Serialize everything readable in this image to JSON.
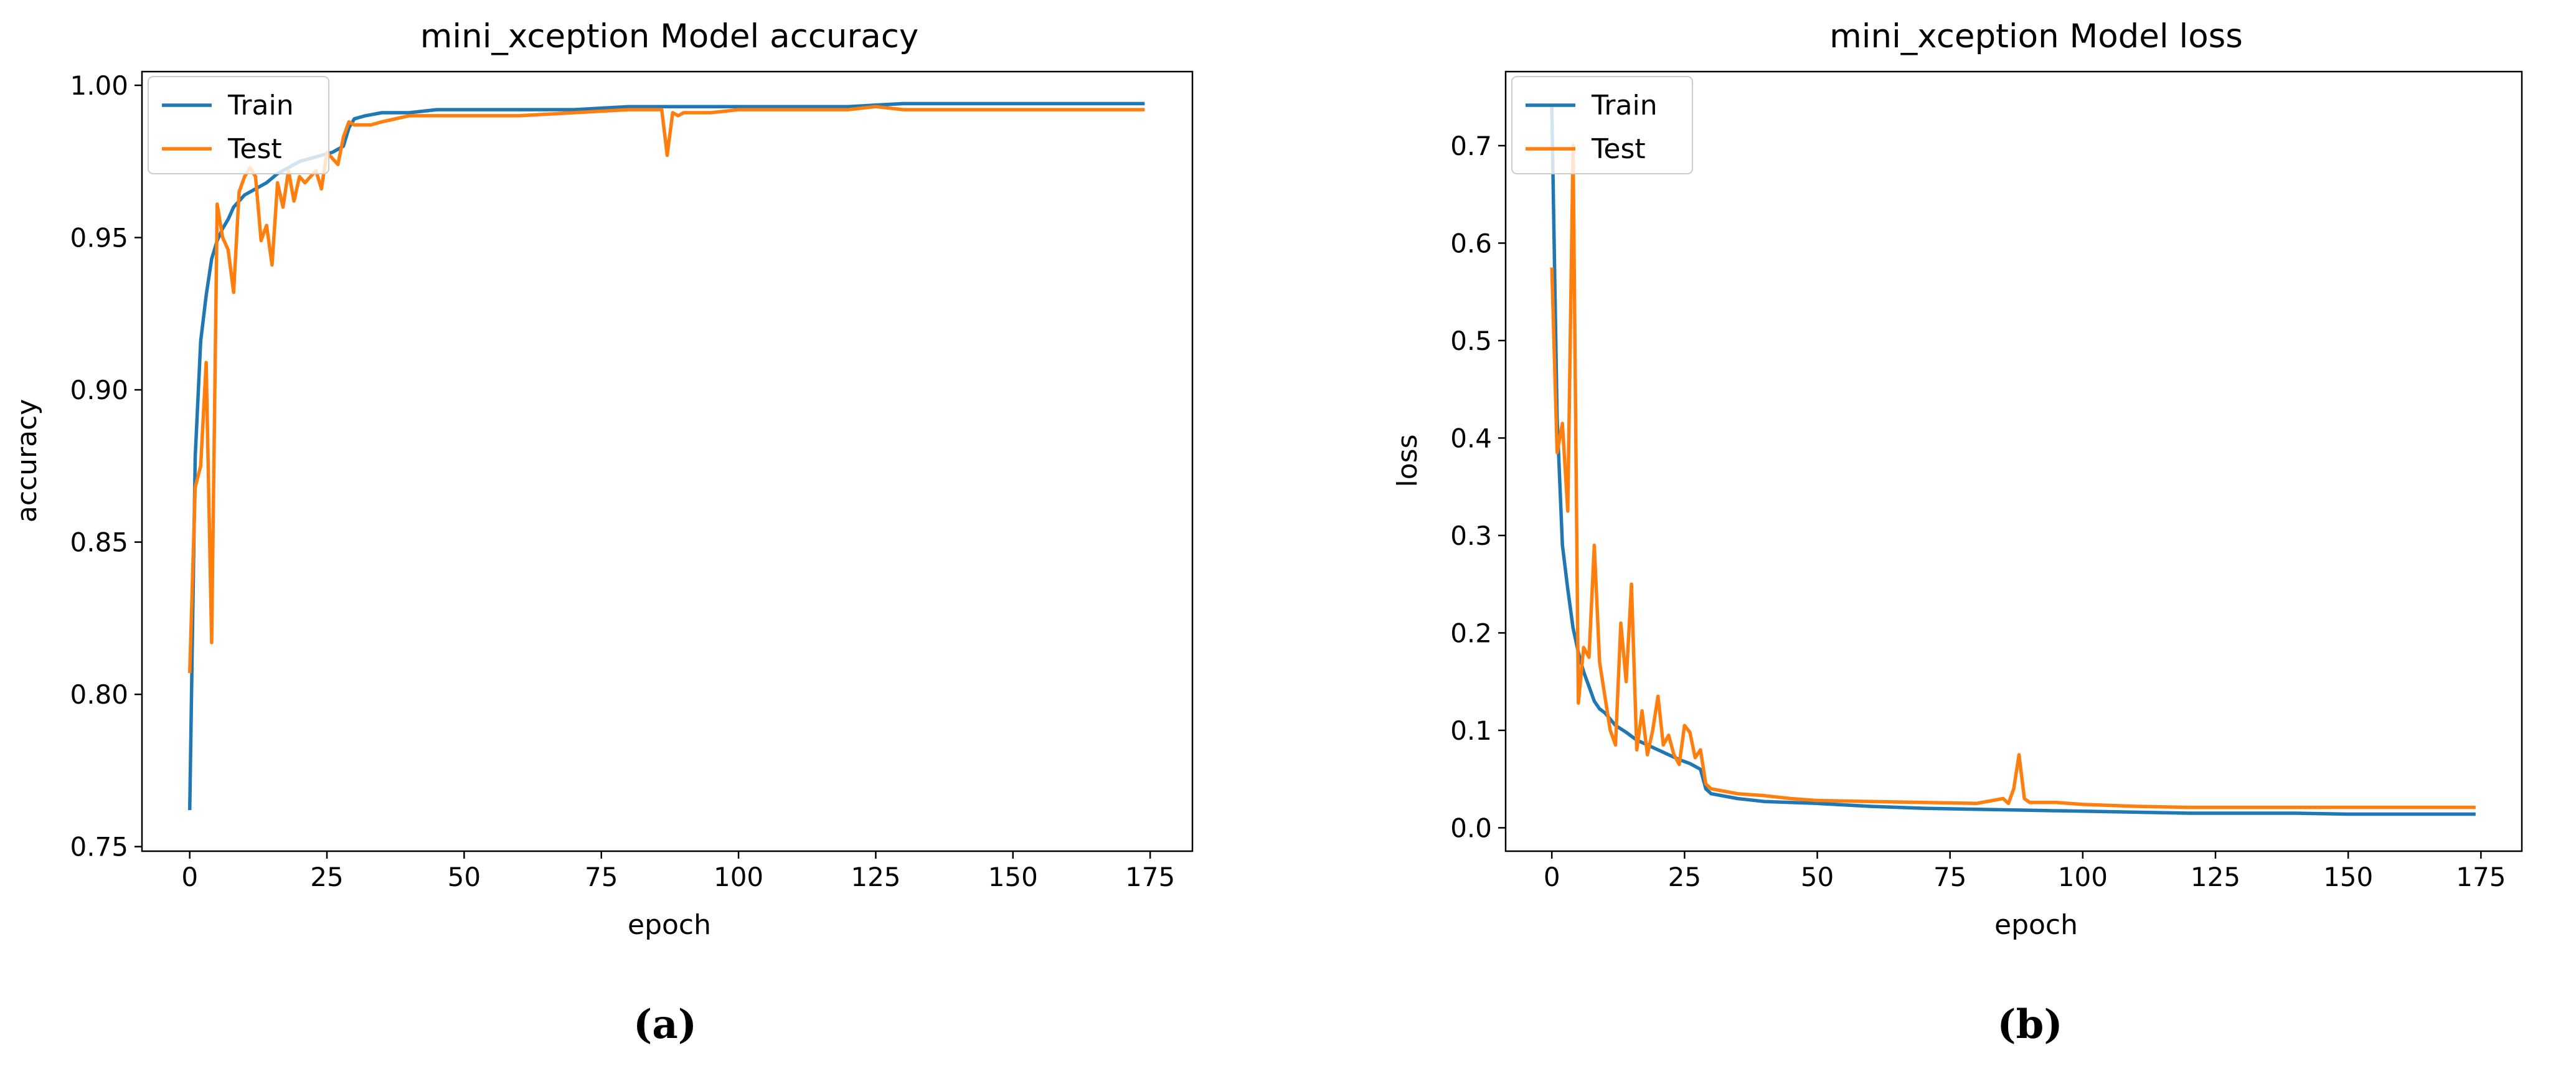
{
  "figure": {
    "panel_labels": [
      "(a)",
      "(b)"
    ]
  },
  "chart_data": [
    {
      "type": "line",
      "title": "mini_xception Model accuracy",
      "xlabel": "epoch",
      "ylabel": "accuracy",
      "xlim": [
        -8.7,
        182.7
      ],
      "ylim": [
        0.7485,
        1.0045
      ],
      "xticks": [
        0,
        25,
        50,
        75,
        100,
        125,
        150,
        175
      ],
      "yticks": [
        0.75,
        0.8,
        0.85,
        0.9,
        0.95,
        1.0
      ],
      "ytick_labels": [
        "0.75",
        "0.80",
        "0.85",
        "0.90",
        "0.95",
        "1.00"
      ],
      "grid": false,
      "legend": "upper-left",
      "series": [
        {
          "name": "Train",
          "color": "#1f77b4",
          "x": [
            0,
            1,
            2,
            3,
            4,
            5,
            6,
            7,
            8,
            9,
            10,
            12,
            14,
            16,
            18,
            20,
            22,
            24,
            26,
            27,
            28,
            29,
            30,
            32,
            35,
            40,
            45,
            50,
            55,
            60,
            70,
            80,
            90,
            100,
            110,
            120,
            130,
            140,
            150,
            160,
            170,
            174
          ],
          "y": [
            0.762,
            0.878,
            0.916,
            0.931,
            0.943,
            0.949,
            0.953,
            0.956,
            0.96,
            0.962,
            0.964,
            0.966,
            0.968,
            0.971,
            0.973,
            0.975,
            0.976,
            0.977,
            0.978,
            0.979,
            0.98,
            0.986,
            0.989,
            0.99,
            0.991,
            0.991,
            0.992,
            0.992,
            0.992,
            0.992,
            0.992,
            0.993,
            0.993,
            0.993,
            0.993,
            0.993,
            0.994,
            0.994,
            0.994,
            0.994,
            0.994,
            0.994
          ]
        },
        {
          "name": "Test",
          "color": "#ff7f0e",
          "x": [
            0,
            1,
            2,
            3,
            4,
            5,
            6,
            7,
            8,
            9,
            10,
            11,
            12,
            13,
            14,
            15,
            16,
            17,
            18,
            19,
            20,
            21,
            22,
            23,
            24,
            25,
            26,
            27,
            28,
            29,
            30,
            33,
            35,
            40,
            45,
            50,
            55,
            60,
            70,
            80,
            86,
            87,
            88,
            89,
            90,
            95,
            100,
            110,
            120,
            125,
            130,
            140,
            150,
            160,
            170,
            174
          ],
          "y": [
            0.807,
            0.868,
            0.875,
            0.909,
            0.817,
            0.961,
            0.95,
            0.946,
            0.932,
            0.965,
            0.97,
            0.973,
            0.97,
            0.949,
            0.954,
            0.941,
            0.968,
            0.96,
            0.972,
            0.962,
            0.97,
            0.968,
            0.97,
            0.972,
            0.966,
            0.978,
            0.976,
            0.974,
            0.983,
            0.988,
            0.987,
            0.987,
            0.988,
            0.99,
            0.99,
            0.99,
            0.99,
            0.99,
            0.991,
            0.992,
            0.992,
            0.977,
            0.991,
            0.99,
            0.991,
            0.991,
            0.992,
            0.992,
            0.992,
            0.993,
            0.992,
            0.992,
            0.992,
            0.992,
            0.992,
            0.992
          ]
        }
      ]
    },
    {
      "type": "line",
      "title": "mini_xception Model loss",
      "xlabel": "epoch",
      "ylabel": "loss",
      "xlim": [
        -8.7,
        182.7
      ],
      "ylim": [
        -0.024,
        0.776
      ],
      "xticks": [
        0,
        25,
        50,
        75,
        100,
        125,
        150,
        175
      ],
      "yticks": [
        0.0,
        0.1,
        0.2,
        0.3,
        0.4,
        0.5,
        0.6,
        0.7
      ],
      "ytick_labels": [
        "0.0",
        "0.1",
        "0.2",
        "0.3",
        "0.4",
        "0.5",
        "0.6",
        "0.7"
      ],
      "grid": false,
      "legend": "upper-left",
      "series": [
        {
          "name": "Train",
          "color": "#1f77b4",
          "x": [
            0,
            1,
            2,
            3,
            4,
            5,
            6,
            7,
            8,
            9,
            10,
            12,
            14,
            16,
            18,
            20,
            22,
            24,
            26,
            28,
            29,
            30,
            35,
            40,
            50,
            60,
            70,
            80,
            90,
            100,
            110,
            120,
            130,
            140,
            150,
            160,
            170,
            174
          ],
          "y": [
            0.74,
            0.42,
            0.29,
            0.245,
            0.205,
            0.18,
            0.16,
            0.145,
            0.13,
            0.122,
            0.118,
            0.105,
            0.098,
            0.09,
            0.085,
            0.08,
            0.075,
            0.07,
            0.066,
            0.06,
            0.04,
            0.035,
            0.03,
            0.027,
            0.025,
            0.022,
            0.02,
            0.019,
            0.018,
            0.017,
            0.016,
            0.015,
            0.015,
            0.015,
            0.014,
            0.014,
            0.014,
            0.014
          ]
        },
        {
          "name": "Test",
          "color": "#ff7f0e",
          "x": [
            0,
            1,
            2,
            3,
            4,
            5,
            6,
            7,
            8,
            9,
            10,
            11,
            12,
            13,
            14,
            15,
            16,
            17,
            18,
            19,
            20,
            21,
            22,
            23,
            24,
            25,
            26,
            27,
            28,
            29,
            30,
            35,
            40,
            45,
            50,
            60,
            70,
            80,
            85,
            86,
            87,
            88,
            89,
            90,
            95,
            100,
            110,
            120,
            130,
            140,
            150,
            160,
            170,
            174
          ],
          "y": [
            0.575,
            0.385,
            0.415,
            0.325,
            0.7,
            0.128,
            0.185,
            0.175,
            0.29,
            0.17,
            0.135,
            0.1,
            0.085,
            0.21,
            0.15,
            0.25,
            0.08,
            0.12,
            0.075,
            0.1,
            0.135,
            0.085,
            0.095,
            0.075,
            0.065,
            0.105,
            0.098,
            0.072,
            0.08,
            0.045,
            0.04,
            0.035,
            0.033,
            0.03,
            0.028,
            0.027,
            0.026,
            0.025,
            0.03,
            0.025,
            0.04,
            0.075,
            0.03,
            0.026,
            0.026,
            0.024,
            0.022,
            0.021,
            0.021,
            0.021,
            0.021,
            0.021,
            0.021,
            0.021
          ]
        }
      ]
    }
  ]
}
